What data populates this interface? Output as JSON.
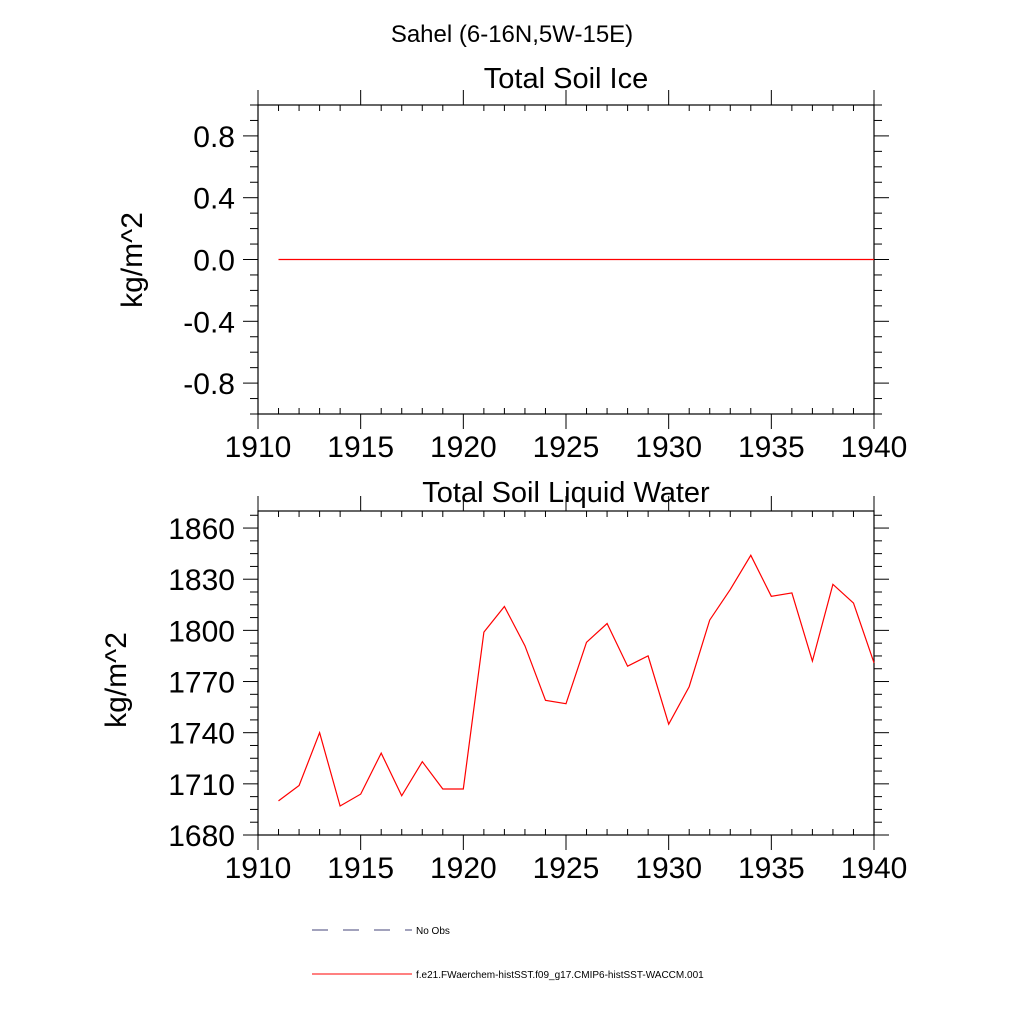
{
  "figure": {
    "title": "Sahel (6-16N,5W-15E)"
  },
  "chart_data": [
    {
      "type": "line",
      "title": "Total Soil Ice",
      "xlabel": "",
      "ylabel": "kg/m^2",
      "xlim": [
        1910,
        1940
      ],
      "ylim": [
        -1.0,
        1.0
      ],
      "xticks": [
        1910,
        1915,
        1920,
        1925,
        1930,
        1935,
        1940
      ],
      "yticks": [
        -0.8,
        -0.4,
        0.0,
        0.4,
        0.8
      ],
      "ytick_labels": [
        "-0.8",
        "-0.4",
        "0.0",
        "0.4",
        "0.8"
      ],
      "grid": false,
      "x": [
        1911,
        1912,
        1913,
        1914,
        1915,
        1916,
        1917,
        1918,
        1919,
        1920,
        1921,
        1922,
        1923,
        1924,
        1925,
        1926,
        1927,
        1928,
        1929,
        1930,
        1931,
        1932,
        1933,
        1934,
        1935,
        1936,
        1937,
        1938,
        1939,
        1940
      ],
      "series": [
        {
          "color": "#ff0000",
          "values": [
            0,
            0,
            0,
            0,
            0,
            0,
            0,
            0,
            0,
            0,
            0,
            0,
            0,
            0,
            0,
            0,
            0,
            0,
            0,
            0,
            0,
            0,
            0,
            0,
            0,
            0,
            0,
            0,
            0,
            0
          ]
        }
      ]
    },
    {
      "type": "line",
      "title": "Total Soil Liquid Water",
      "xlabel": "",
      "ylabel": "kg/m^2",
      "xlim": [
        1910,
        1940
      ],
      "ylim": [
        1680,
        1870
      ],
      "xticks": [
        1910,
        1915,
        1920,
        1925,
        1930,
        1935,
        1940
      ],
      "yticks": [
        1680,
        1710,
        1740,
        1770,
        1800,
        1830,
        1860
      ],
      "ytick_labels": [
        "1680",
        "1710",
        "1740",
        "1770",
        "1800",
        "1830",
        "1860"
      ],
      "grid": false,
      "x": [
        1911,
        1912,
        1913,
        1914,
        1915,
        1916,
        1917,
        1918,
        1919,
        1920,
        1921,
        1922,
        1923,
        1924,
        1925,
        1926,
        1927,
        1928,
        1929,
        1930,
        1931,
        1932,
        1933,
        1934,
        1935,
        1936,
        1937,
        1938,
        1939,
        1940
      ],
      "series": [
        {
          "color": "#ff0000",
          "values": [
            1700,
            1709,
            1740,
            1697,
            1704,
            1728,
            1703,
            1723,
            1707,
            1707,
            1799,
            1814,
            1791,
            1759,
            1757,
            1793,
            1804,
            1779,
            1785,
            1745,
            1767,
            1806,
            1824,
            1844,
            1820,
            1822,
            1782,
            1827,
            1816,
            1781
          ]
        }
      ]
    }
  ],
  "legend": {
    "placement": "bottom-center",
    "items": [
      {
        "label": "No Obs",
        "color": "#44447a",
        "dash": true
      },
      {
        "label": "f.e21.FWaerchem-histSST.f09_g17.CMIP6-histSST-WACCM.001",
        "color": "#ff0000",
        "dash": false
      }
    ]
  }
}
